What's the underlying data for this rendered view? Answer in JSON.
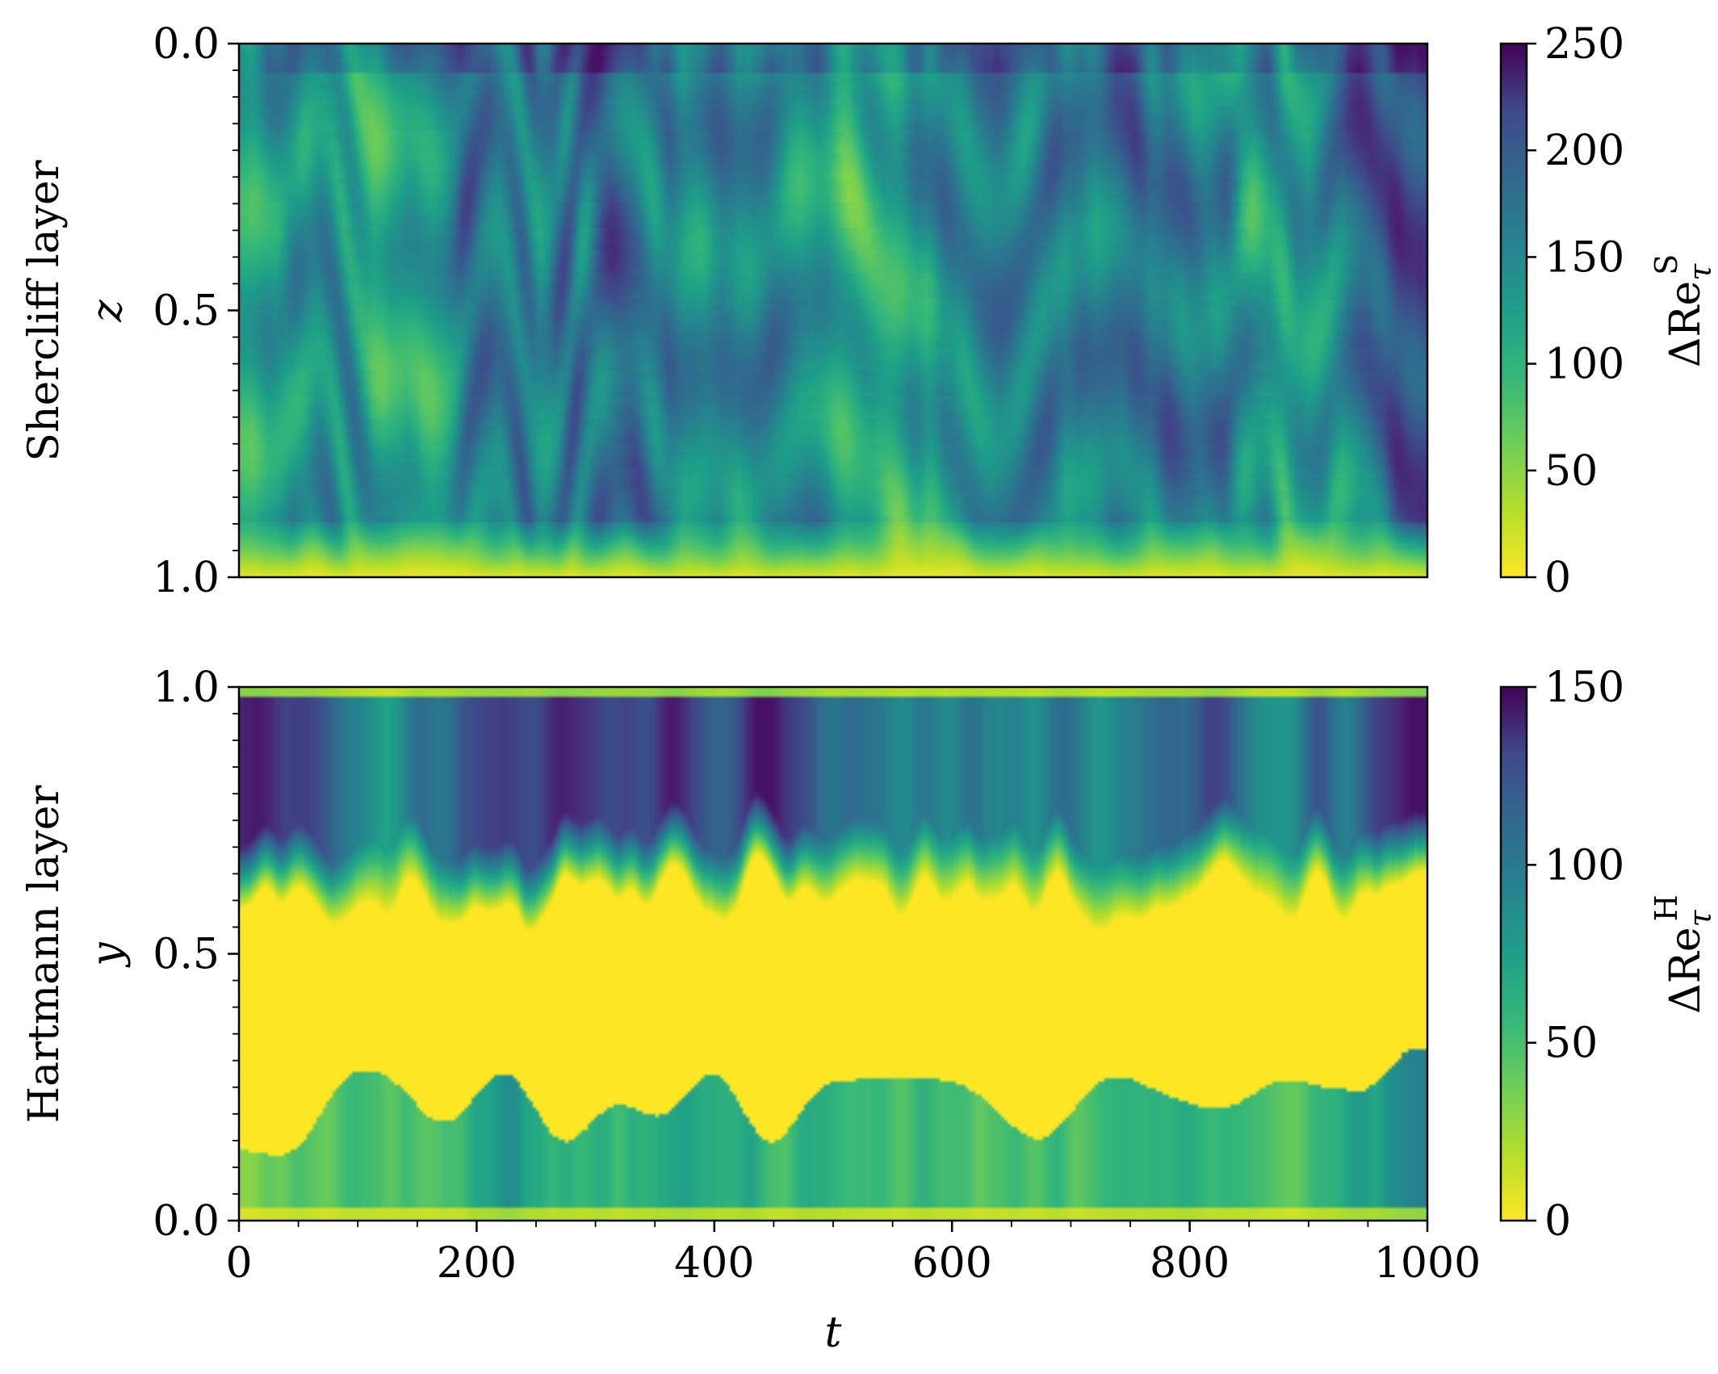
{
  "chart_data": [
    {
      "type": "heatmap",
      "panel": "top",
      "ylabel_row": "Shercliff layer",
      "ylabel_var": "z",
      "xlim": [
        0,
        1000
      ],
      "ylim": [
        1.0,
        0.0
      ],
      "y_inverted": true,
      "x_ticks": [
        0,
        200,
        400,
        600,
        800,
        1000
      ],
      "y_ticks": [
        "0.0",
        "0.5",
        "1.0"
      ],
      "colorbar": {
        "label_main": "ΔRe",
        "label_sub": "τ",
        "label_sup": "S",
        "range": [
          0,
          250
        ],
        "ticks": [
          "0",
          "50",
          "100",
          "150",
          "200",
          "250"
        ],
        "colormap": "viridis_r"
      },
      "description_values": "Field mostly 60–180; yellow near z=1 wall; darkest streaks near z=0"
    },
    {
      "type": "heatmap",
      "panel": "bottom",
      "ylabel_row": "Hartmann layer",
      "ylabel_var": "y",
      "xlabel": "t",
      "xlim": [
        0,
        1000
      ],
      "ylim": [
        0.0,
        1.0
      ],
      "x_ticks": [
        "0",
        "200",
        "400",
        "600",
        "800",
        "1000"
      ],
      "y_ticks": [
        "0.0",
        "0.5",
        "1.0"
      ],
      "colorbar": {
        "label_main": "ΔRe",
        "label_sub": "τ",
        "label_sup": "H",
        "range": [
          0,
          150
        ],
        "ticks": [
          "0",
          "50",
          "100",
          "150"
        ],
        "colormap": "viridis_r"
      },
      "description_values": "High (70–140) for y>0.65, near 0 for 0.3<y<0.6, patchy 20–80 for y<0.3"
    }
  ],
  "colors": {
    "viridis_low": "#fde725",
    "viridis_high": "#440154"
  }
}
